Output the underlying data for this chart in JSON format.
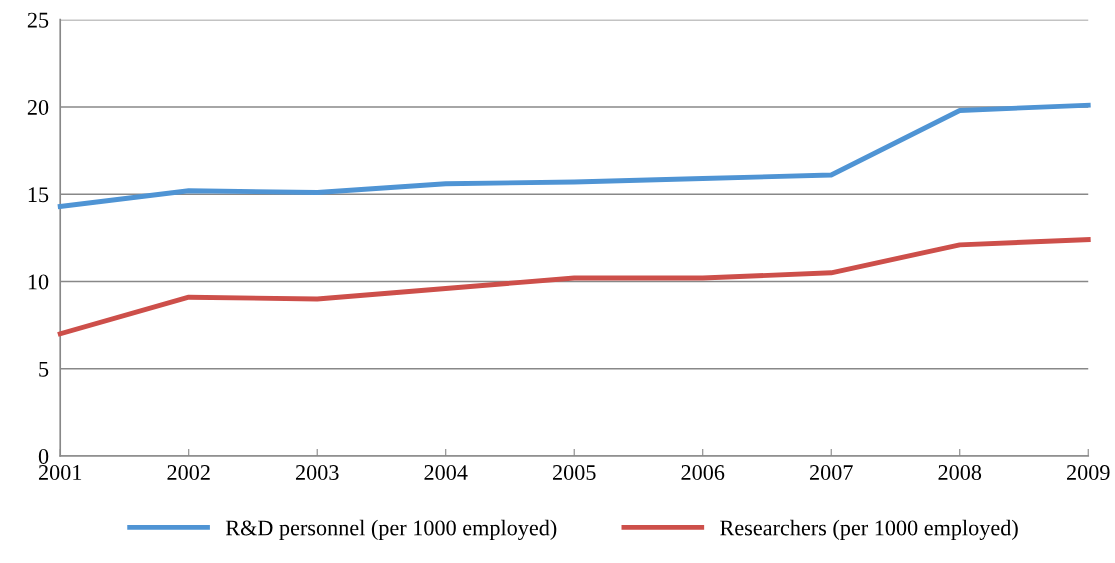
{
  "chart_data": {
    "type": "line",
    "x": [
      2001,
      2002,
      2003,
      2004,
      2005,
      2006,
      2007,
      2008,
      2009
    ],
    "series": [
      {
        "name": "R&D personnel (per 1000 employed)",
        "color": "#4f94d4",
        "values": [
          14.3,
          15.2,
          15.1,
          15.6,
          15.7,
          15.9,
          16.1,
          19.8,
          20.1
        ]
      },
      {
        "name": "Researchers (per 1000 employed)",
        "color": "#cd4f4a",
        "values": [
          7.0,
          9.1,
          9.0,
          9.6,
          10.2,
          10.2,
          10.5,
          12.1,
          12.4
        ]
      }
    ],
    "xlim": [
      2001,
      2009
    ],
    "xticks": [
      2001,
      2002,
      2003,
      2004,
      2005,
      2006,
      2007,
      2008,
      2009
    ],
    "ylim": [
      0,
      25
    ],
    "yticks": [
      0,
      5,
      10,
      15,
      20,
      25
    ],
    "grid": "y",
    "legend": "bottom",
    "marker": "none",
    "line_style": "solid"
  }
}
